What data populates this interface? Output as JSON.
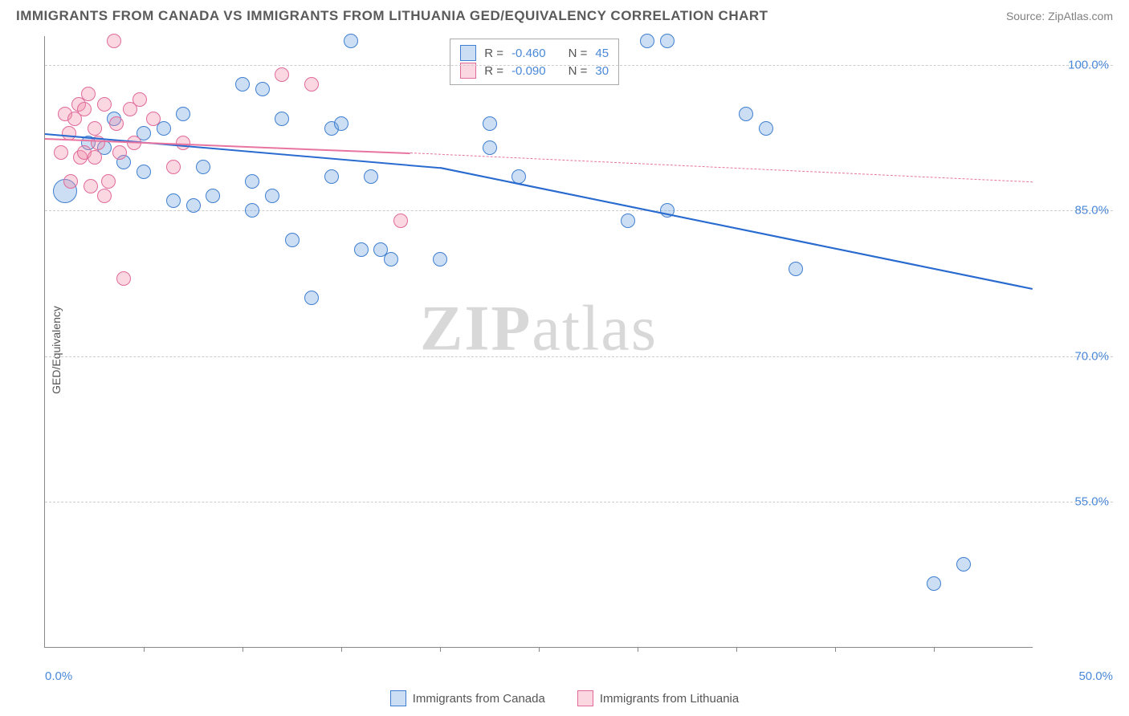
{
  "title": "IMMIGRANTS FROM CANADA VS IMMIGRANTS FROM LITHUANIA GED/EQUIVALENCY CORRELATION CHART",
  "source": "Source: ZipAtlas.com",
  "ylabel": "GED/Equivalency",
  "watermark_a": "ZIP",
  "watermark_b": "atlas",
  "chart": {
    "type": "scatter",
    "xlim": [
      0,
      50
    ],
    "ylim": [
      40,
      103
    ],
    "xticks": [
      0,
      50
    ],
    "xtick_labels": [
      "0.0%",
      "50.0%"
    ],
    "xtick_minor": [
      5,
      10,
      15,
      20,
      25,
      30,
      35,
      40,
      45
    ],
    "yticks": [
      55,
      70,
      85,
      100
    ],
    "ytick_labels": [
      "55.0%",
      "70.0%",
      "85.0%",
      "100.0%"
    ],
    "grid_color": "#cccccc",
    "background_color": "#ffffff",
    "marker_radius": 9,
    "marker_radius_large": 15,
    "series": [
      {
        "name": "Immigrants from Canada",
        "fill": "rgba(110,160,220,0.35)",
        "stroke": "#3f7fd0",
        "line_color": "#2a6bd0",
        "R_label": "R =",
        "R": "-0.460",
        "N_label": "N =",
        "N": "45",
        "trend": {
          "x1": 0,
          "y1": 93,
          "x2": 20,
          "y2": 89.5,
          "x3": 50,
          "y3": 77
        },
        "points": [
          {
            "x": 1.0,
            "y": 87.0,
            "r": 15
          },
          {
            "x": 2.2,
            "y": 92.0
          },
          {
            "x": 3.0,
            "y": 91.5
          },
          {
            "x": 3.5,
            "y": 94.5
          },
          {
            "x": 4.0,
            "y": 90.0
          },
          {
            "x": 5.0,
            "y": 93.0
          },
          {
            "x": 5.0,
            "y": 89.0
          },
          {
            "x": 6.0,
            "y": 93.5
          },
          {
            "x": 6.5,
            "y": 86.0
          },
          {
            "x": 7.0,
            "y": 95.0
          },
          {
            "x": 7.5,
            "y": 85.5
          },
          {
            "x": 8.0,
            "y": 89.5
          },
          {
            "x": 8.5,
            "y": 86.5
          },
          {
            "x": 10.0,
            "y": 98.0
          },
          {
            "x": 10.5,
            "y": 88.0
          },
          {
            "x": 10.5,
            "y": 85.0
          },
          {
            "x": 11.0,
            "y": 97.5
          },
          {
            "x": 11.5,
            "y": 86.5
          },
          {
            "x": 12.0,
            "y": 94.5
          },
          {
            "x": 12.5,
            "y": 82.0
          },
          {
            "x": 13.5,
            "y": 76.0
          },
          {
            "x": 14.5,
            "y": 93.5
          },
          {
            "x": 14.5,
            "y": 88.5
          },
          {
            "x": 15.0,
            "y": 94.0
          },
          {
            "x": 15.5,
            "y": 102.5
          },
          {
            "x": 16.0,
            "y": 81.0
          },
          {
            "x": 16.5,
            "y": 88.5
          },
          {
            "x": 17.0,
            "y": 81.0
          },
          {
            "x": 17.5,
            "y": 80.0
          },
          {
            "x": 20.0,
            "y": 80.0
          },
          {
            "x": 22.5,
            "y": 91.5
          },
          {
            "x": 22.5,
            "y": 94.0
          },
          {
            "x": 24.0,
            "y": 88.5
          },
          {
            "x": 29.5,
            "y": 84.0
          },
          {
            "x": 30.5,
            "y": 102.5
          },
          {
            "x": 31.5,
            "y": 85.0
          },
          {
            "x": 31.5,
            "y": 102.5
          },
          {
            "x": 35.5,
            "y": 95.0
          },
          {
            "x": 36.5,
            "y": 93.5
          },
          {
            "x": 38.0,
            "y": 79.0
          },
          {
            "x": 45.0,
            "y": 46.5
          },
          {
            "x": 46.5,
            "y": 48.5
          }
        ]
      },
      {
        "name": "Immigrants from Lithuania",
        "fill": "rgba(240,140,170,0.35)",
        "stroke": "#e06a9a",
        "line_color": "#e874a0",
        "R_label": "R =",
        "R": "-0.090",
        "N_label": "N =",
        "N": "30",
        "trend": {
          "x1": 0,
          "y1": 92.5,
          "x2": 18.5,
          "y2": 91,
          "x3": 50,
          "y3": 88
        },
        "points": [
          {
            "x": 0.8,
            "y": 91.0
          },
          {
            "x": 1.0,
            "y": 95.0
          },
          {
            "x": 1.2,
            "y": 93.0
          },
          {
            "x": 1.3,
            "y": 88.0
          },
          {
            "x": 1.5,
            "y": 94.5
          },
          {
            "x": 1.7,
            "y": 96.0
          },
          {
            "x": 1.8,
            "y": 90.5
          },
          {
            "x": 2.0,
            "y": 95.5
          },
          {
            "x": 2.0,
            "y": 91.0
          },
          {
            "x": 2.2,
            "y": 97.0
          },
          {
            "x": 2.3,
            "y": 87.5
          },
          {
            "x": 2.5,
            "y": 93.5
          },
          {
            "x": 2.5,
            "y": 90.5
          },
          {
            "x": 2.7,
            "y": 92.0
          },
          {
            "x": 3.0,
            "y": 96.0
          },
          {
            "x": 3.0,
            "y": 86.5
          },
          {
            "x": 3.2,
            "y": 88.0
          },
          {
            "x": 3.5,
            "y": 102.5
          },
          {
            "x": 3.6,
            "y": 94.0
          },
          {
            "x": 3.8,
            "y": 91.0
          },
          {
            "x": 4.0,
            "y": 78.0
          },
          {
            "x": 4.3,
            "y": 95.5
          },
          {
            "x": 4.5,
            "y": 92.0
          },
          {
            "x": 4.8,
            "y": 96.5
          },
          {
            "x": 5.5,
            "y": 94.5
          },
          {
            "x": 6.5,
            "y": 89.5
          },
          {
            "x": 7.0,
            "y": 92.0
          },
          {
            "x": 12.0,
            "y": 99.0
          },
          {
            "x": 13.5,
            "y": 98.0
          },
          {
            "x": 18.0,
            "y": 84.0
          }
        ]
      }
    ]
  },
  "bottom_legend": [
    {
      "label": "Immigrants from Canada",
      "fill": "rgba(110,160,220,0.35)",
      "stroke": "#3f7fd0"
    },
    {
      "label": "Immigrants from Lithuania",
      "fill": "rgba(240,140,170,0.35)",
      "stroke": "#e06a9a"
    }
  ]
}
